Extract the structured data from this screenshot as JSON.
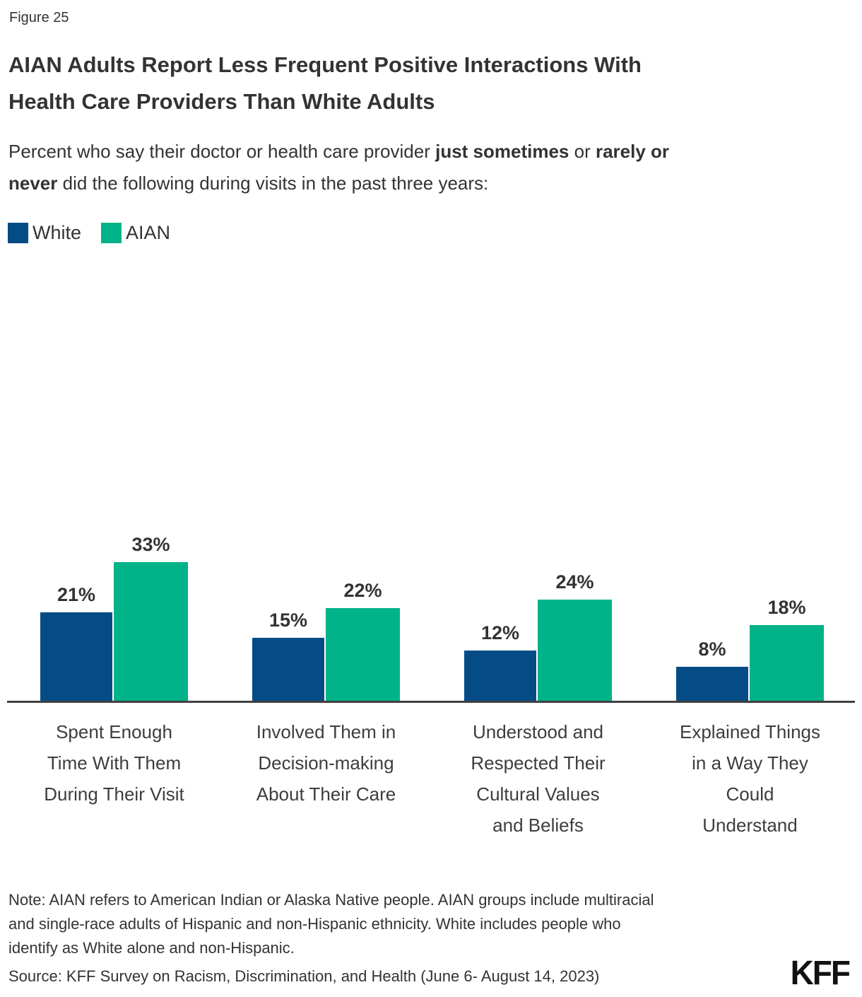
{
  "figure_label": "Figure 25",
  "title": {
    "line1": "AIAN Adults Report Less Frequent Positive Interactions With",
    "line2": "Health Care Providers Than White Adults"
  },
  "subtitle": {
    "part1": "Percent who say their doctor or health care provider ",
    "bold1": "just sometimes",
    "part2": " or ",
    "bold2": "rarely or",
    "bold3": "never",
    "part3": " did the following during visits in the past three years:"
  },
  "legend": {
    "items": [
      {
        "label": "White",
        "color": "#054c87"
      },
      {
        "label": "AIAN",
        "color": "#00b388"
      }
    ]
  },
  "chart_data": {
    "type": "bar",
    "categories": [
      "Spent Enough\nTime With Them\nDuring Their Visit",
      "Involved Them in\nDecision-making\nAbout Their Care",
      "Understood and\nRespected Their\nCultural Values\nand Beliefs",
      "Explained Things\nin a Way They\nCould\nUnderstand"
    ],
    "series": [
      {
        "name": "White",
        "color": "#054c87",
        "values": [
          21,
          15,
          12,
          8
        ]
      },
      {
        "name": "AIAN",
        "color": "#00b388",
        "values": [
          33,
          22,
          24,
          18
        ]
      }
    ],
    "value_suffix": "%",
    "title": "AIAN Adults Report Less Frequent Positive Interactions With Health Care Providers Than White Adults",
    "xlabel": "",
    "ylabel": "",
    "ylim": [
      0,
      40
    ],
    "grid": false,
    "y_axis_shown": false,
    "legend_position": "top-left",
    "axis_color": "#404040"
  },
  "note": {
    "line1": "Note: AIAN refers to American Indian or Alaska Native people. AIAN groups include multiracial",
    "line2": "and single-race adults of Hispanic and non-Hispanic ethnicity. White includes people who",
    "line3": "identify as White alone and non-Hispanic.",
    "full": "Note: AIAN refers to American Indian or Alaska Native people. AIAN groups include multiracial and single-race adults of Hispanic and non-Hispanic ethnicity. White includes people who identify as White alone and non-Hispanic."
  },
  "source": "Source: KFF Survey on Racism, Discrimination, and Health (June 6- August 14, 2023)",
  "logo": "KFF"
}
